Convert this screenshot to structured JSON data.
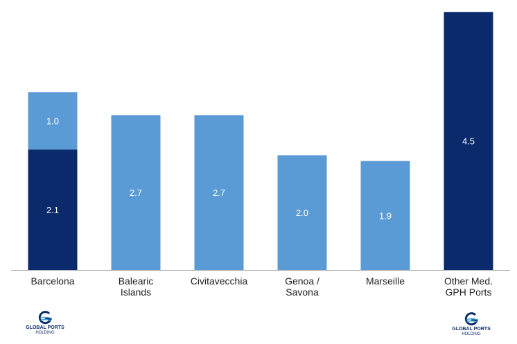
{
  "chart_data": {
    "type": "bar",
    "stacked": true,
    "categories": [
      [
        "Barcelona"
      ],
      [
        "Balearic",
        "Islands"
      ],
      [
        "Civitavecchia"
      ],
      [
        "Genoa /",
        "Savona"
      ],
      [
        "Marseille"
      ],
      [
        "Other Med.",
        "GPH Ports"
      ]
    ],
    "series": [
      {
        "values": [
          2.1,
          2.7,
          2.7,
          2.0,
          1.9,
          4.5
        ],
        "colors": [
          "#0a2a6b",
          "#5b9bd5",
          "#5b9bd5",
          "#5b9bd5",
          "#5b9bd5",
          "#0a2a6b"
        ]
      },
      {
        "values": [
          1.0,
          null,
          null,
          null,
          null,
          null
        ],
        "colors": [
          "#5b9bd5",
          null,
          null,
          null,
          null,
          null
        ]
      }
    ],
    "data_labels": [
      [
        "2.1",
        "2.7",
        "2.7",
        "2.0",
        "1.9",
        "4.5"
      ],
      [
        "1.0",
        "",
        "",
        "",
        "",
        ""
      ]
    ],
    "ylim": [
      0,
      4.6
    ],
    "title": "",
    "xlabel": "",
    "ylabel": "",
    "grid": false,
    "legend": "none"
  },
  "logos": {
    "left": {
      "line1": "GLOBAL PORTS",
      "line2": "HOLDING"
    },
    "right": {
      "line1": "GLOBAL PORTS",
      "line2": "HOLDING"
    }
  },
  "colors": {
    "dark": "#0a2a6b",
    "light": "#5b9bd5",
    "axis": "#a6a6a6"
  }
}
